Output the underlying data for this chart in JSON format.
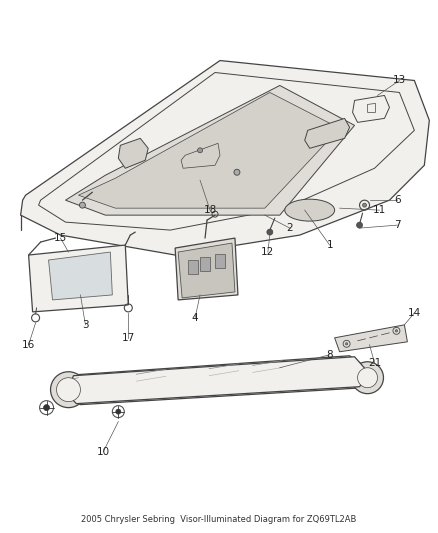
{
  "title": "2005 Chrysler Sebring\nVisor-Illuminated Diagram for ZQ69TL2AB",
  "background_color": "#ffffff",
  "line_color": "#444444",
  "label_color": "#222222",
  "fig_width": 4.38,
  "fig_height": 5.33,
  "dpi": 100
}
